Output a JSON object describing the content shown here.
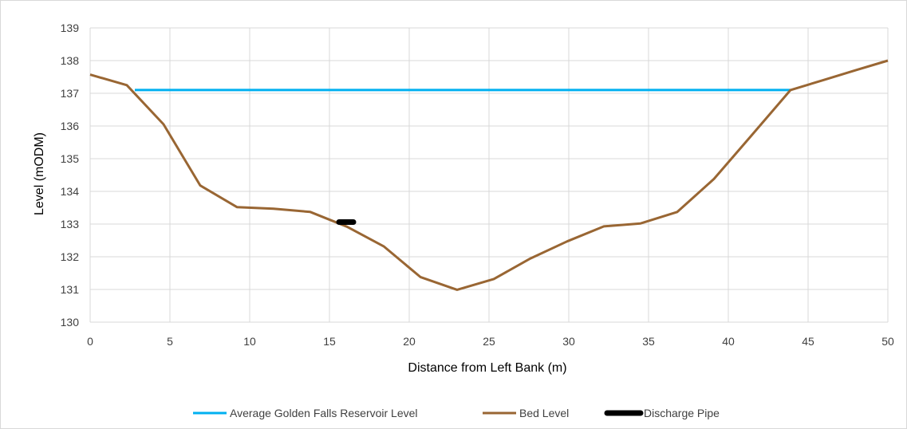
{
  "chart_data": {
    "type": "line",
    "title": "",
    "xlabel": "Distance from Left Bank (m)",
    "ylabel": "Level (mODM)",
    "xlim": [
      0,
      50
    ],
    "ylim": [
      130,
      139
    ],
    "x_ticks": [
      "0",
      "5",
      "10",
      "15",
      "20",
      "25",
      "30",
      "35",
      "40",
      "45",
      "50"
    ],
    "y_ticks": [
      "130",
      "131",
      "132",
      "133",
      "134",
      "135",
      "136",
      "137",
      "138",
      "139"
    ],
    "grid": true,
    "legend_position": "bottom",
    "series": [
      {
        "name": "Average Golden Falls Reservoir Level",
        "color": "#00b0f0",
        "x": [
          2.8,
          43.9
        ],
        "y": [
          137.1,
          137.1
        ]
      },
      {
        "name": "Bed Level",
        "color": "#996633",
        "x": [
          0,
          2.3,
          4.6,
          6.9,
          9.2,
          11.5,
          13.8,
          16.1,
          18.4,
          20.7,
          23.0,
          25.3,
          27.6,
          29.9,
          32.2,
          34.5,
          36.8,
          39.1,
          41.4,
          43.9,
          46.0,
          48.0,
          50.0
        ],
        "y": [
          137.57,
          137.25,
          136.05,
          134.18,
          133.52,
          133.47,
          133.37,
          132.92,
          132.32,
          131.38,
          130.99,
          131.32,
          131.95,
          132.47,
          132.93,
          133.02,
          133.37,
          134.38,
          135.68,
          137.1,
          137.41,
          137.71,
          138.0
        ]
      },
      {
        "name": "Discharge Pipe",
        "color": "#000000",
        "x": [
          15.6,
          16.5
        ],
        "y": [
          133.06,
          133.06
        ]
      }
    ]
  }
}
